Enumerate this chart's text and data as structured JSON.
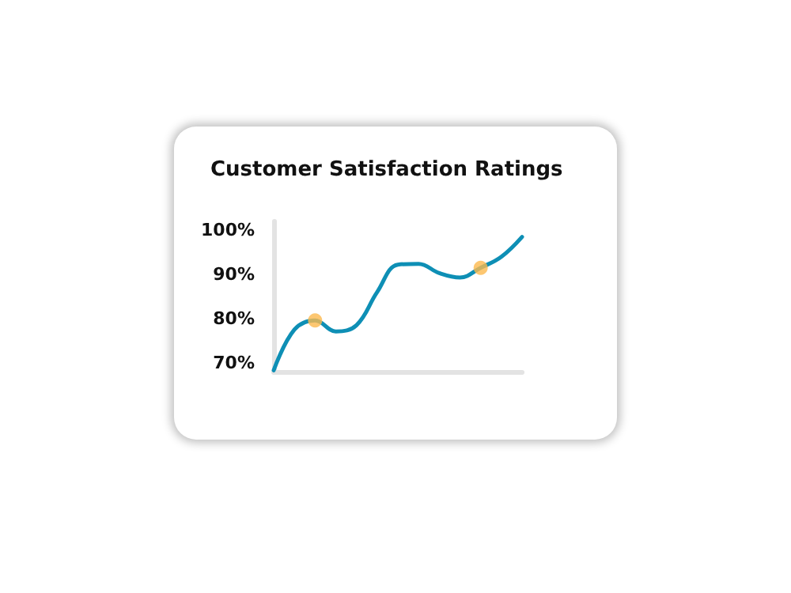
{
  "chart_data": {
    "type": "line",
    "title": "Customer Satisfaction Ratings",
    "categories": [
      null,
      null,
      null,
      null,
      null,
      null,
      null,
      null,
      null,
      null,
      null,
      null,
      null
    ],
    "series": [
      {
        "color": "#0e8fb5",
        "values": [
          68.3,
          77.5,
          79.6,
          77.1,
          78.5,
          86,
          92.2,
          92.4,
          90.3,
          89.3,
          91.5,
          94,
          98.5
        ]
      },
      {
        "type": "scatter",
        "color": "#fdb94e",
        "values": [
          null,
          null,
          79.6,
          null,
          null,
          null,
          null,
          null,
          null,
          null,
          91.5,
          null,
          null
        ]
      }
    ],
    "ylim": [
      68,
      102
    ],
    "yticks": [
      {
        "value": 70,
        "label": "70%"
      },
      {
        "value": 80,
        "label": "80%"
      },
      {
        "value": 90,
        "label": "90%"
      },
      {
        "value": 100,
        "label": "100%"
      }
    ],
    "grid": false,
    "tick_labels": "y"
  }
}
